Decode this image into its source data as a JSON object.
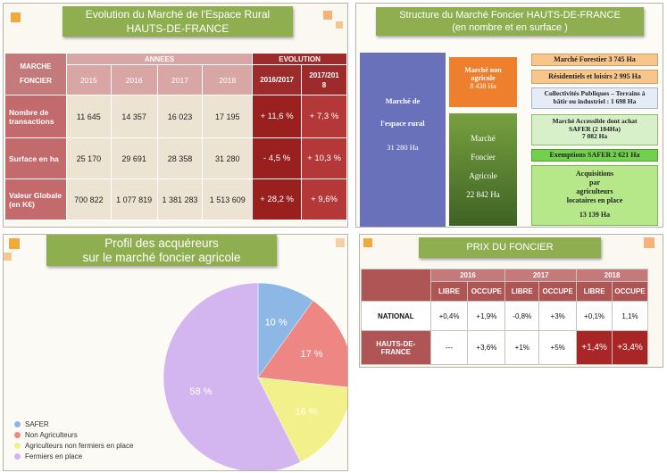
{
  "panel_evolution": {
    "title_line1": "Evolution du  Marché de l'Espace Rural",
    "title_line2": "HAUTS-DE-FRANCE",
    "header_corner_line1": "MARCHE",
    "header_corner_line2": "FONCIER",
    "header_years": "ANNEES",
    "header_evolution": "EVOLUTION",
    "years": [
      "2015",
      "2016",
      "2017",
      "2018"
    ],
    "evolution_cols_line1": [
      "2016/2017",
      "2017/201"
    ],
    "evolution_cols_line2": [
      "",
      "8"
    ],
    "rows": [
      {
        "label_line1": "Nombre de",
        "label_line2": "transactions",
        "values": [
          "11 645",
          "14 357",
          "16 023",
          "17 195"
        ],
        "evol": [
          "+ 11,6 %",
          "+ 7,3 %"
        ]
      },
      {
        "label_line1": "Surface en ha",
        "label_line2": "",
        "values": [
          "25 170",
          "29 691",
          "28 358",
          "31 280"
        ],
        "evol": [
          "- 4,5 %",
          "+ 10,3 %"
        ]
      },
      {
        "label_line1": "Valeur Globale",
        "label_line2": "(en K€)",
        "values": [
          "700 822",
          "1 077 819",
          "1 381 283",
          "1 513 609"
        ],
        "evol": [
          "+ 28,2 %",
          "+ 9,6%"
        ]
      }
    ]
  },
  "panel_structure": {
    "title_line1": "Structure du Marché Foncier HAUTS-DE-FRANCE",
    "title_line2": "(en nombre et en surface )",
    "espace_rural": {
      "line1": "Marché de",
      "line2": "l'espace rural",
      "value": "31 280 Ha"
    },
    "non_agricole": {
      "line1": "Marché non",
      "line2": "agricole",
      "value": "8 438 Ha"
    },
    "agricole": {
      "line1": "Marché",
      "line2": "Foncier",
      "line3": "Agricole",
      "value": "22 842 Ha"
    },
    "forestier": "Marché Forestier 3 745 Ha",
    "residentiels": "Résidentiels et loisirs  2 995 Ha",
    "collectivites_line1": "Collectivités Publiques – Terrains à",
    "collectivites_line2": "bâtir ou industriel : 1 698 Ha",
    "accessible_line1": "Marché Accessible dont achat",
    "accessible_line2": "SAFER (2 184Ha)",
    "accessible_line3": "7 082 Ha",
    "exemptions": "Exemptions SAFER  2 621 Ha",
    "acquisitions_line1": "Acquisitions",
    "acquisitions_line2": "par",
    "acquisitions_line3": "agriculteurs",
    "acquisitions_line4": "locataires en place",
    "acquisitions_value": "13 139 Ha"
  },
  "panel_profil": {
    "title_line1": "Profil des acquéreurs",
    "title_line2": "sur le marché foncier agricole"
  },
  "chart_data": {
    "type": "pie",
    "categories": [
      "SAFER",
      "Non Agriculteurs",
      "Agriculteurs non fermiers en place",
      "Fermiers en place"
    ],
    "values": [
      10,
      17,
      16,
      58
    ],
    "labels": [
      "10 %",
      "17 %",
      "16 %",
      "58 %"
    ],
    "colors": [
      "#8db8e6",
      "#ee8684",
      "#f2f08b",
      "#d3b6f0"
    ],
    "legend_position": "bottom-left"
  },
  "panel_prix": {
    "title": "PRIX DU FONCIER",
    "years": [
      "2016",
      "2017",
      "2018"
    ],
    "sub_headers": [
      "LIBRE",
      "OCCUPE",
      "LIBRE",
      "OCCUPE",
      "LIBRE",
      "OCCUPE"
    ],
    "rows": [
      {
        "label_line1": "NATIONAL",
        "label_line2": "",
        "values": [
          "+0,4%",
          "+1,9%",
          "-0,8%",
          "+3%",
          "+0,1%",
          "1,1%"
        ]
      },
      {
        "label_line1": "HAUTS-DE-",
        "label_line2": "FRANCE",
        "values": [
          "---",
          "+3,6%",
          "+1%",
          "+5%",
          "+1,4%",
          "+3,4%"
        ]
      }
    ]
  }
}
